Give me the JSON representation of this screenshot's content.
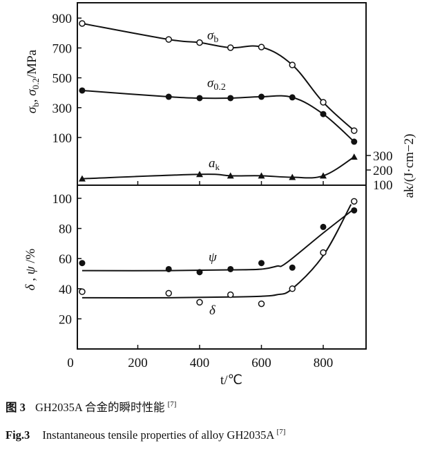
{
  "chart_data": {
    "type": "line",
    "x": [
      20,
      300,
      400,
      500,
      600,
      700,
      800,
      900
    ],
    "xlabel": "t/℃",
    "xticks": [
      "0",
      "200",
      "400",
      "600",
      "800"
    ],
    "xtick_values": [
      0,
      200,
      400,
      600,
      800
    ],
    "xlim": [
      0,
      940
    ],
    "grid": false,
    "panels": [
      {
        "id": "strength",
        "ylabel": "σb, σ0.2/MPa",
        "ylim": [
          -220,
          1000
        ],
        "yticks": [
          "900",
          "700",
          "500",
          "300",
          "100"
        ],
        "ytick_values": [
          900,
          700,
          500,
          300,
          100
        ],
        "series": [
          {
            "name": "σb",
            "marker": "open-circle",
            "x": [
              20,
              300,
              400,
              500,
              600,
              700,
              800,
              900
            ],
            "y": [
              864,
              757,
              736,
              702,
              706,
              586,
              336,
              146
            ]
          },
          {
            "name": "σ0.2",
            "marker": "filled-circle",
            "x": [
              20,
              300,
              400,
              500,
              600,
              700,
              800,
              900
            ],
            "y": [
              415,
              373,
              364,
              364,
              373,
              369,
              257,
              72
            ]
          }
        ]
      },
      {
        "id": "impact",
        "ylabel": "ak/(J·cm−2)",
        "axis": "right",
        "yticks": [
          "300",
          "200",
          "100"
        ],
        "ytick_values": [
          300,
          200,
          100
        ],
        "series": [
          {
            "name": "ak",
            "marker": "filled-triangle",
            "x": [
              20,
              400,
              500,
              600,
              700,
              800,
              900
            ],
            "y": [
              140,
              170,
              160,
              160,
              150,
              160,
              290
            ]
          }
        ]
      },
      {
        "id": "ductility",
        "ylabel": "δ , ψ /%",
        "ylim": [
          0,
          108
        ],
        "yticks": [
          "100",
          "80",
          "60",
          "40",
          "20"
        ],
        "ytick_values": [
          100,
          80,
          60,
          40,
          20
        ],
        "series": [
          {
            "name": "ψ",
            "marker": "filled-circle",
            "x": [
              20,
              300,
              400,
              500,
              600,
              700,
              800,
              900
            ],
            "y": [
              57,
              53,
              51,
              53,
              57,
              54,
              81,
              92
            ],
            "fit_x": [
              20,
              300,
              500,
              600,
              650,
              680,
              800,
              900
            ],
            "fit_y": [
              52,
              52,
              52.5,
              53,
              55,
              57,
              77,
              93
            ]
          },
          {
            "name": "δ",
            "marker": "open-circle",
            "x": [
              20,
              300,
              400,
              500,
              600,
              700,
              800,
              900
            ],
            "y": [
              38,
              37,
              31,
              36,
              30,
              40,
              64,
              98
            ],
            "fit_x": [
              20,
              300,
              500,
              600,
              650,
              700,
              800,
              890
            ],
            "fit_y": [
              34,
              34,
              34.5,
              35,
              36,
              40,
              62,
              96
            ]
          }
        ]
      }
    ]
  },
  "caption": {
    "cn_label": "图 3",
    "cn_text": "GH2035A 合金的瞬时性能",
    "cn_ref": "[7]",
    "en_label": "Fig.3",
    "en_text": "Instantaneous tensile properties of alloy GH2035A",
    "en_ref": "[7]"
  }
}
